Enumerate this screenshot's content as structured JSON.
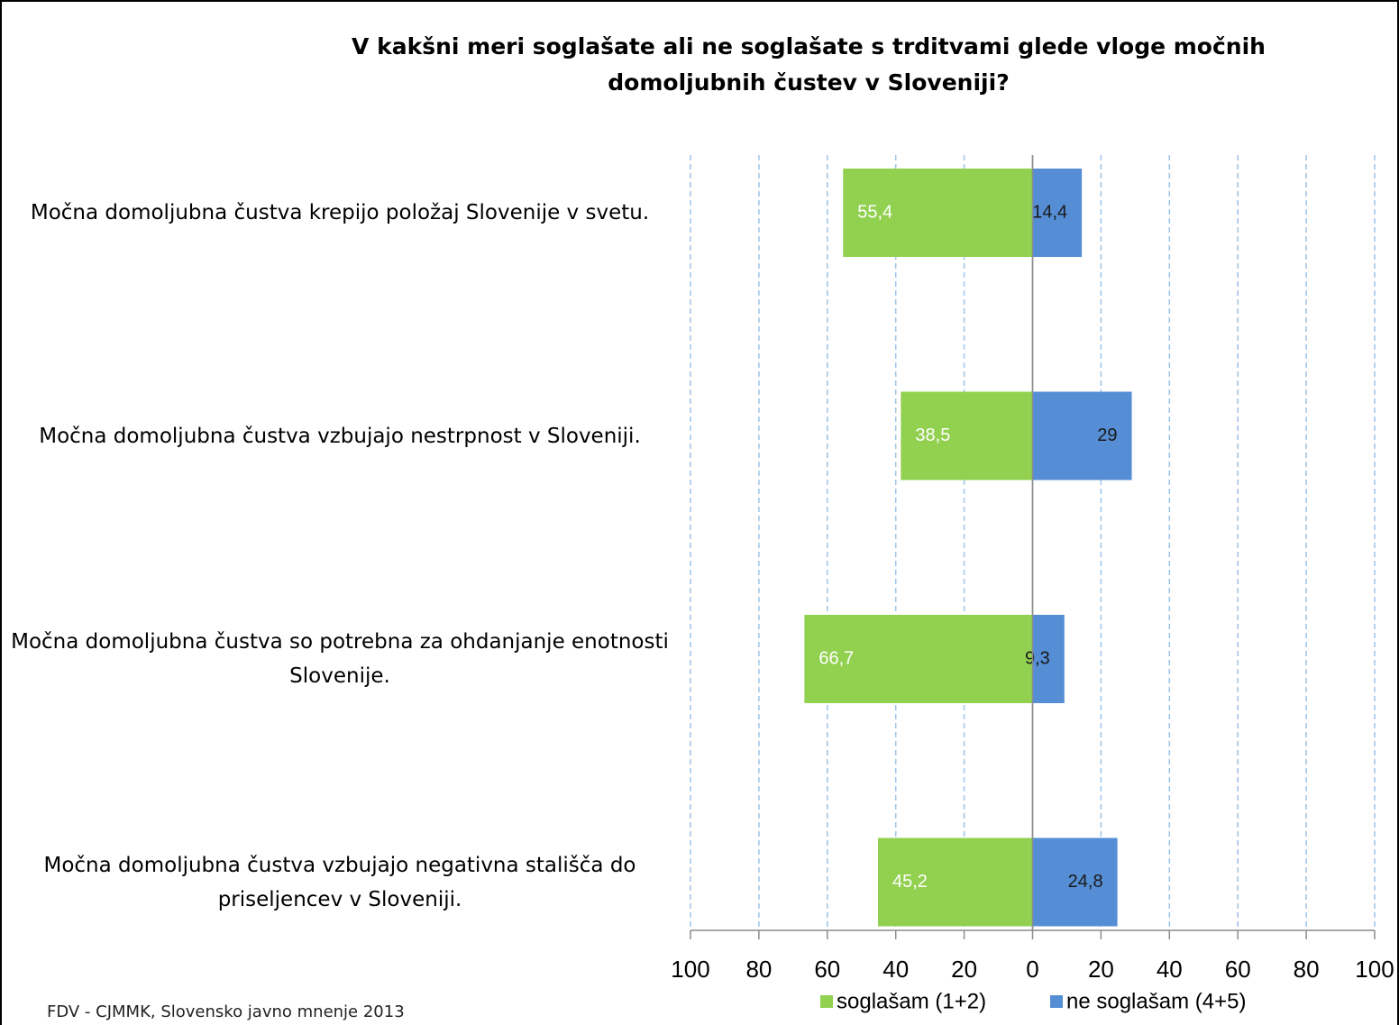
{
  "chart_data": {
    "type": "diverging_bar",
    "title": "V kakšni meri soglašate ali ne soglašate s trditvami glede vloge močnih domoljubnih čustev v Sloveniji?",
    "categories": [
      "Močna domoljubna čustva krepijo položaj Slovenije v svetu.",
      "Močna domoljubna čustva vzbujajo nestrpnost v Sloveniji.",
      "Močna domoljubna čustva so potrebna za ohdanjanje enotnosti Slovenije.",
      "Močna domoljubna čustva vzbujajo negativna stališča do priseljencev v Sloveniji."
    ],
    "series": [
      {
        "name": "soglašam (1+2)",
        "color": "#92d050",
        "label_color": "#ffffff",
        "values": [
          -55.4,
          -38.5,
          -66.7,
          -45.2
        ],
        "value_labels": [
          "55,4",
          "38,5",
          "66,7",
          "45,2"
        ]
      },
      {
        "name": "ne soglašam (4+5)",
        "color": "#558ed5",
        "label_color": "#1a1a1a",
        "values": [
          14.4,
          29,
          9.3,
          24.8
        ],
        "value_labels": [
          "14,4",
          "29",
          "9,3",
          "24,8"
        ]
      }
    ],
    "xlim": [
      -100,
      100
    ],
    "xticks": [
      {
        "value": -100,
        "label": "100"
      },
      {
        "value": -80,
        "label": "80"
      },
      {
        "value": -60,
        "label": "60"
      },
      {
        "value": -40,
        "label": "40"
      },
      {
        "value": -20,
        "label": "20"
      },
      0,
      20,
      40,
      60,
      80,
      100
    ],
    "grid": true,
    "legend": "bottom",
    "source": "FDV - CJMMK, Slovensko javno mnenje 2013"
  }
}
